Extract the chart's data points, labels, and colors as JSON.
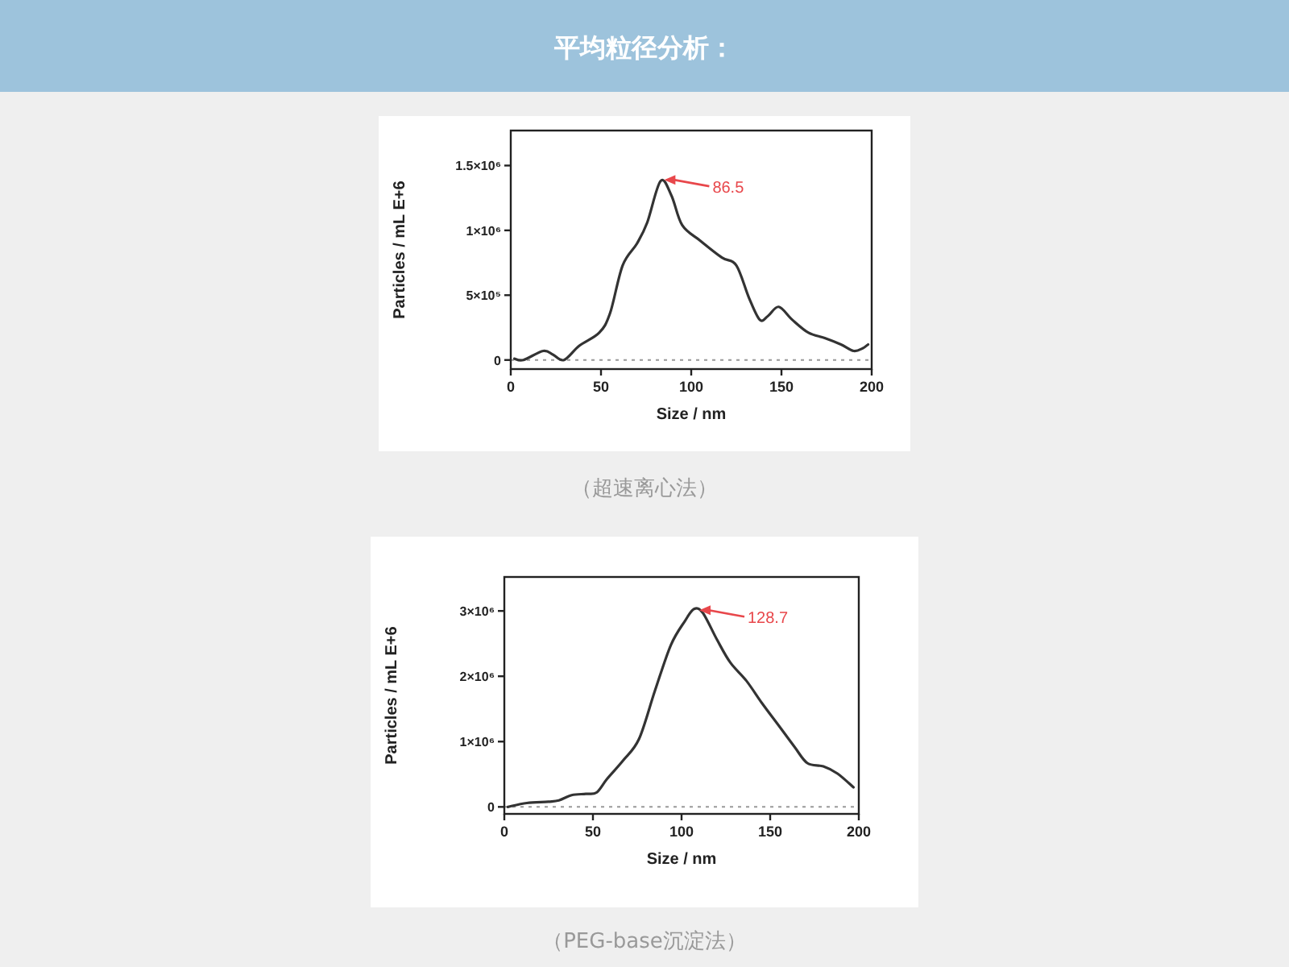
{
  "chart_data": [
    {
      "type": "line",
      "title": "平均粒径分析：",
      "xlabel": "Size / nm",
      "ylabel": "Particles / mL E+6",
      "x": [
        2,
        7,
        18,
        23.5,
        29.5,
        38,
        49,
        55,
        62,
        70,
        75.6,
        83,
        89,
        95,
        105,
        117,
        125,
        132,
        138,
        142.6,
        148.5,
        156,
        165,
        174,
        183,
        190,
        195,
        198
      ],
      "series": [
        {
          "color": "#333333",
          "values": [
            10000,
            0,
            70000,
            40000,
            0,
            110000,
            210000,
            360000,
            730000,
            900000,
            1060000,
            1380000,
            1270000,
            1040000,
            920000,
            790000,
            730000,
            480000,
            310000,
            340000,
            410000,
            310000,
            210000,
            170000,
            120000,
            70000,
            90000,
            120000
          ]
        }
      ],
      "xlim": [
        0,
        200
      ],
      "xticks": [
        0,
        50,
        100,
        150,
        200
      ],
      "ylim": [
        -70000,
        1770000
      ],
      "yticks": [
        0,
        {
          "value": 500000,
          "label": "5×10⁵"
        },
        {
          "value": 1000000,
          "label": "1×10⁶"
        },
        {
          "value": 1500000,
          "label": "1.5×10⁶"
        }
      ],
      "ref_lines": [
        {
          "axis": "y",
          "value": 0,
          "label": null,
          "color": "#999999",
          "line_style": "dotted"
        }
      ],
      "annotations": [
        {
          "text": "86.5",
          "x": 85,
          "y": 1390000
        },
        "（超速离心法）"
      ],
      "grid": false,
      "marker": "none",
      "line_style": "solid"
    },
    {
      "type": "line",
      "xlabel": "Size / nm",
      "ylabel": "Particles / mL E+6",
      "x": [
        2,
        12.7,
        24.8,
        30.8,
        38,
        46,
        52,
        58,
        67,
        76,
        85,
        94,
        102,
        107,
        112,
        120,
        127.5,
        136.6,
        145.6,
        154.7,
        163.7,
        171,
        180,
        188,
        197
      ],
      "series": [
        {
          "color": "#333333",
          "values": [
            0,
            60000,
            80000,
            100000,
            180000,
            200000,
            220000,
            430000,
            710000,
            1040000,
            1780000,
            2480000,
            2850000,
            3030000,
            2970000,
            2560000,
            2210000,
            1930000,
            1580000,
            1250000,
            920000,
            670000,
            620000,
            510000,
            300000
          ]
        }
      ],
      "xlim": [
        0,
        200
      ],
      "xticks": [
        0,
        50,
        100,
        150,
        200
      ],
      "ylim": [
        -107000,
        3520000
      ],
      "yticks": [
        0,
        {
          "value": 1000000,
          "label": "1×10⁶"
        },
        {
          "value": 2000000,
          "label": "2×10⁶"
        },
        {
          "value": 3000000,
          "label": "3×10⁶"
        }
      ],
      "ref_lines": [
        {
          "axis": "y",
          "value": 0,
          "label": null,
          "color": "#999999",
          "line_style": "dotted"
        }
      ],
      "annotations": [
        {
          "text": "128.7",
          "x": 110,
          "y": 3010000
        },
        "（PEG-base沉淀法）"
      ],
      "grid": false,
      "marker": "none",
      "line_style": "solid"
    }
  ]
}
